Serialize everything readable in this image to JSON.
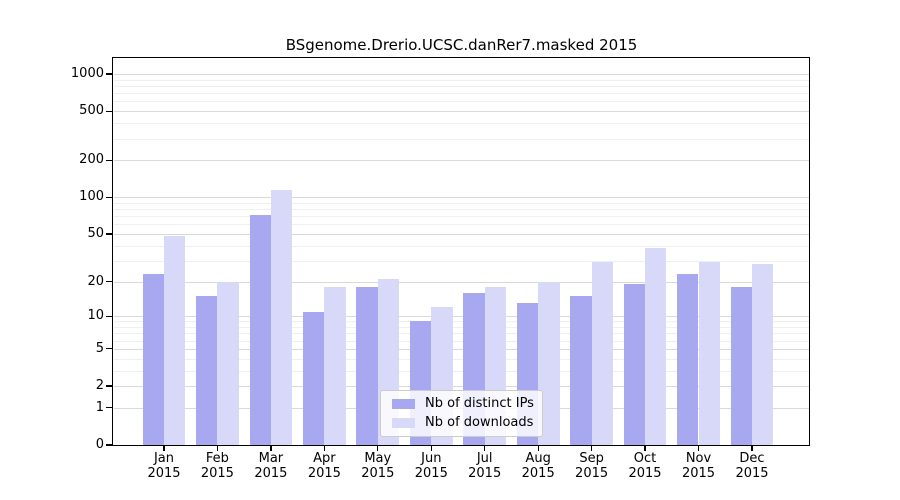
{
  "chart_data": {
    "type": "bar",
    "title": "BSgenome.Drerio.UCSC.danRer7.masked 2015",
    "categories": [
      "Jan",
      "Feb",
      "Mar",
      "Apr",
      "May",
      "Jun",
      "Jul",
      "Aug",
      "Sep",
      "Oct",
      "Nov",
      "Dec"
    ],
    "category_year": "2015",
    "series": [
      {
        "name": "Nb of distinct IPs",
        "color": "#a8a8f0",
        "values": [
          23,
          15,
          72,
          11,
          18,
          9,
          16,
          13,
          15,
          19,
          23,
          18
        ]
      },
      {
        "name": "Nb of downloads",
        "color": "#d8d8f8",
        "values": [
          48,
          20,
          114,
          18,
          21,
          12,
          18,
          20,
          29,
          38,
          29,
          28
        ]
      }
    ],
    "y_scale": "log10(value+1)",
    "y_ticks": [
      0,
      1,
      2,
      5,
      10,
      20,
      50,
      100,
      200,
      500,
      1000
    ],
    "minor_gridlines": [
      3,
      4,
      6,
      7,
      8,
      9,
      30,
      40,
      60,
      70,
      80,
      90,
      300,
      400,
      600,
      700,
      800,
      900
    ],
    "ylim": [
      0,
      1350
    ],
    "grid": true,
    "legend_position": "inside-bottom-center",
    "colors": {
      "major_grid": "#d9d9d9",
      "minor_grid": "#efefef",
      "axis": "#000000",
      "background": "#ffffff"
    }
  }
}
